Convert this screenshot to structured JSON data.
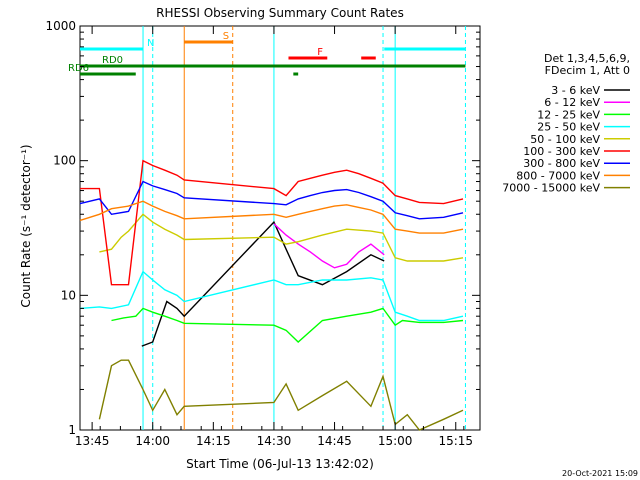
{
  "chart_data": {
    "type": "line",
    "title": "RHESSI Observing Summary Count Rates",
    "xlabel": "Start Time (06-Jul-13 13:42:02)",
    "ylabel": "Count Rate (s⁻¹ detector⁻¹)",
    "timestamp": "20-Oct-2021 15:09",
    "yscale": "log",
    "ylim": [
      1,
      1000
    ],
    "xlim_minutes": [
      13.7,
      15.35
    ],
    "xticks": [
      {
        "t": 13.75,
        "label": "13:45"
      },
      {
        "t": 14.0,
        "label": "14:00"
      },
      {
        "t": 14.25,
        "label": "14:15"
      },
      {
        "t": 14.5,
        "label": "14:30"
      },
      {
        "t": 14.75,
        "label": "14:45"
      },
      {
        "t": 15.0,
        "label": "15:00"
      },
      {
        "t": 15.25,
        "label": "15:15"
      }
    ],
    "yticks": [
      {
        "v": 1,
        "label": "1"
      },
      {
        "v": 10,
        "label": "10"
      },
      {
        "v": 100,
        "label": "100"
      },
      {
        "v": 1000,
        "label": "1000"
      }
    ],
    "legend_header": [
      "Det 1,3,4,5,6,9,",
      "FDecim 1, Att 0"
    ],
    "series": [
      {
        "name": "3 - 6 keV",
        "color": "#000000",
        "x": [
          13.955,
          14.0,
          14.058,
          14.1,
          14.13,
          14.5,
          14.55,
          14.6,
          14.7,
          14.8,
          14.9,
          14.955
        ],
        "y": [
          4.2,
          4.5,
          9,
          8,
          7,
          35,
          22,
          14,
          12,
          15,
          20,
          18
        ]
      },
      {
        "name": "6 - 12 keV",
        "color": "#ff00ff",
        "x": [
          14.5,
          14.55,
          14.6,
          14.65,
          14.7,
          14.75,
          14.8,
          14.85,
          14.9,
          14.955
        ],
        "y": [
          34,
          28,
          24,
          21,
          18,
          16,
          17,
          21,
          24,
          20
        ]
      },
      {
        "name": "12 - 25 keV",
        "color": "#00ff00",
        "x": [
          13.83,
          13.88,
          13.93,
          13.96,
          14.0,
          14.05,
          14.1,
          14.13,
          14.5,
          14.55,
          14.6,
          14.7,
          14.8,
          14.9,
          14.95,
          15.0,
          15.03,
          15.1,
          15.2,
          15.28
        ],
        "y": [
          6.5,
          6.8,
          7,
          8,
          7.5,
          7,
          6.5,
          6.2,
          6,
          5.5,
          4.5,
          6.5,
          7,
          7.5,
          8,
          6,
          6.5,
          6.3,
          6.3,
          6.5
        ]
      },
      {
        "name": "25 - 50 keV",
        "color": "#00ffff",
        "x": [
          13.7,
          13.78,
          13.83,
          13.9,
          13.96,
          14.0,
          14.05,
          14.1,
          14.13,
          14.5,
          14.55,
          14.6,
          14.7,
          14.8,
          14.9,
          14.95,
          15.0,
          15.05,
          15.1,
          15.2,
          15.28
        ],
        "y": [
          8,
          8.2,
          8,
          8.5,
          15,
          13,
          11,
          10,
          9,
          13,
          12,
          12,
          13,
          13,
          13.5,
          13,
          7.5,
          7,
          6.5,
          6.5,
          7
        ]
      },
      {
        "name": "50 - 100 keV",
        "color": "#cccc00",
        "x": [
          13.78,
          13.83,
          13.87,
          13.9,
          13.96,
          14.0,
          14.05,
          14.1,
          14.13,
          14.5,
          14.55,
          14.6,
          14.7,
          14.8,
          14.9,
          14.95,
          15.0,
          15.05,
          15.1,
          15.2,
          15.28
        ],
        "y": [
          21,
          22,
          27,
          30,
          40,
          35,
          31,
          28,
          26,
          27,
          24,
          25,
          28,
          31,
          30,
          29,
          19,
          18,
          18,
          18,
          19
        ]
      },
      {
        "name": "100 - 300 keV",
        "color": "#ff0000",
        "x": [
          13.7,
          13.78,
          13.83,
          13.9,
          13.96,
          14.0,
          14.05,
          14.1,
          14.13,
          14.5,
          14.55,
          14.6,
          14.65,
          14.7,
          14.75,
          14.8,
          14.85,
          14.9,
          14.95,
          15.0,
          15.05,
          15.1,
          15.2,
          15.28
        ],
        "y": [
          62,
          62,
          12,
          12,
          100,
          92,
          85,
          78,
          72,
          62,
          55,
          70,
          74,
          78,
          82,
          85,
          80,
          74,
          68,
          55,
          52,
          49,
          48,
          52
        ]
      },
      {
        "name": "300 - 800 keV",
        "color": "#0000ff",
        "x": [
          13.7,
          13.78,
          13.83,
          13.9,
          13.96,
          14.0,
          14.05,
          14.1,
          14.13,
          14.5,
          14.55,
          14.6,
          14.65,
          14.7,
          14.75,
          14.8,
          14.85,
          14.9,
          14.95,
          15.0,
          15.05,
          15.1,
          15.2,
          15.28
        ],
        "y": [
          48,
          52,
          40,
          42,
          70,
          65,
          61,
          57,
          53,
          48,
          47,
          52,
          55,
          58,
          60,
          61,
          58,
          54,
          50,
          41,
          39,
          37,
          38,
          41
        ]
      },
      {
        "name": "800 - 7000 keV",
        "color": "#ff8000",
        "x": [
          13.7,
          13.78,
          13.83,
          13.9,
          13.96,
          14.0,
          14.05,
          14.1,
          14.13,
          14.5,
          14.55,
          14.6,
          14.65,
          14.7,
          14.75,
          14.8,
          14.85,
          14.9,
          14.95,
          15.0,
          15.05,
          15.1,
          15.2,
          15.28
        ],
        "y": [
          36,
          40,
          44,
          46,
          50,
          46,
          42,
          39,
          37,
          40,
          38,
          40,
          42,
          44,
          46,
          47,
          45,
          43,
          40,
          31,
          30,
          29,
          29,
          31
        ]
      },
      {
        "name": "7000 - 15000 keV",
        "color": "#808000",
        "x": [
          13.78,
          13.83,
          13.87,
          13.9,
          13.96,
          14.0,
          14.05,
          14.1,
          14.13,
          14.5,
          14.55,
          14.6,
          14.7,
          14.8,
          14.9,
          14.95,
          15.0,
          15.05,
          15.1,
          15.2,
          15.28
        ],
        "y": [
          1.2,
          3.0,
          3.3,
          3.3,
          2.0,
          1.4,
          2.0,
          1.3,
          1.5,
          1.6,
          2.2,
          1.4,
          1.8,
          2.3,
          1.5,
          2.5,
          1.1,
          1.3,
          1.0,
          1.2,
          1.4
        ]
      }
    ],
    "segments": [
      {
        "name": "night-start",
        "color": "#00ffff",
        "t": 13.96
      },
      {
        "name": "night-end",
        "color": "#00ffff",
        "t": 14.0
      },
      {
        "name": "saa-start",
        "color": "#ff8000",
        "t": 14.13
      },
      {
        "name": "saa-end",
        "color": "#ff8000",
        "t": 14.33
      },
      {
        "name": "night-start-2",
        "color": "#00ffff",
        "t": 14.5
      },
      {
        "name": "night-end-2",
        "color": "#00ffff",
        "t": 14.95
      },
      {
        "name": "night-start-3",
        "color": "#00ffff",
        "t": 15.0
      },
      {
        "name": "night-end-3",
        "color": "#00ffff",
        "t": 15.29
      }
    ],
    "flags": [
      {
        "label": "N",
        "color": "#00ffff",
        "x0": 13.7,
        "x1": 13.96,
        "level": 1
      },
      {
        "label": "",
        "color": "#00ffff",
        "x0": 14.955,
        "x1": 15.29,
        "level": 1
      },
      {
        "label": "S",
        "color": "#ff8000",
        "x0": 14.13,
        "x1": 14.33,
        "level": 0
      },
      {
        "label": "F",
        "color": "#ff0000",
        "x0": 14.56,
        "x1": 14.72,
        "level": 2
      },
      {
        "label": "",
        "color": "#ff0000",
        "x0": 14.86,
        "x1": 14.92,
        "level": 2
      },
      {
        "label": "RD0",
        "color": "#008000",
        "x0": 13.7,
        "x1": 15.29,
        "level": 3
      },
      {
        "label": "RD6",
        "color": "#008000",
        "x0": 13.7,
        "x1": 13.93,
        "level": 4
      },
      {
        "label": "",
        "color": "#008000",
        "x0": 14.58,
        "x1": 14.6,
        "level": 4
      }
    ]
  }
}
